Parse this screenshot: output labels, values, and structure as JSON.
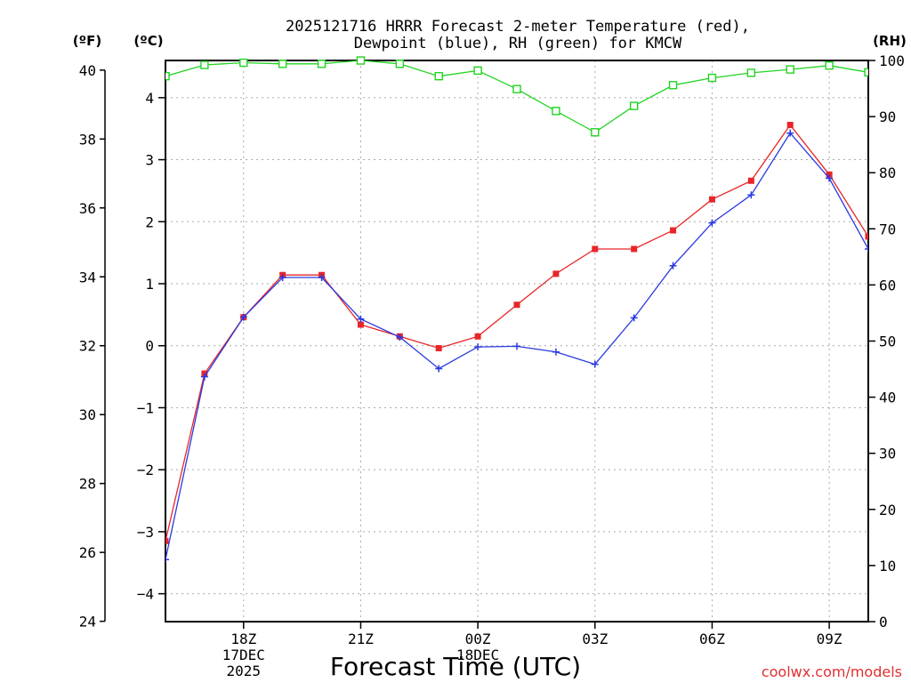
{
  "chart_data": {
    "type": "line",
    "title_line1": "2025121716 HRRR Forecast 2-meter Temperature (red),",
    "title_line2": "Dewpoint (blue), RH (green) for KMCW",
    "xlabel": "Forecast Time (UTC)",
    "credit": "coolwx.com/models",
    "left_outer_label": "(ºF)",
    "left_inner_label": "(ºC)",
    "right_label": "(RH)",
    "hours_from_16Z": [
      0,
      1,
      2,
      3,
      4,
      5,
      6,
      7,
      8,
      9,
      10,
      11,
      12,
      13,
      14,
      15,
      16,
      17,
      18
    ],
    "x_ticks": [
      {
        "hour": 2,
        "label": "18Z",
        "sub1": "17DEC",
        "sub2": "2025"
      },
      {
        "hour": 5,
        "label": "21Z",
        "sub1": "",
        "sub2": ""
      },
      {
        "hour": 8,
        "label": "00Z",
        "sub1": "18DEC",
        "sub2": ""
      },
      {
        "hour": 11,
        "label": "03Z",
        "sub1": "",
        "sub2": ""
      },
      {
        "hour": 14,
        "label": "06Z",
        "sub1": "",
        "sub2": ""
      },
      {
        "hour": 17,
        "label": "09Z",
        "sub1": "",
        "sub2": ""
      }
    ],
    "xlim": [
      0,
      18
    ],
    "celsius_ylim": [
      -4.45,
      4.6
    ],
    "celsius_ticks": [
      -4,
      -3,
      -2,
      -1,
      0,
      1,
      2,
      3,
      4
    ],
    "fahrenheit_ticks": [
      24,
      26,
      28,
      30,
      32,
      34,
      36,
      38,
      40
    ],
    "rh_ylim": [
      0,
      100
    ],
    "rh_ticks": [
      0,
      10,
      20,
      30,
      40,
      50,
      60,
      70,
      80,
      90,
      100
    ],
    "series": [
      {
        "name": "Temperature",
        "unit": "C",
        "color": "#e8262a",
        "values": [
          -3.15,
          -0.45,
          0.46,
          1.14,
          1.14,
          0.34,
          0.15,
          -0.04,
          0.15,
          0.66,
          1.16,
          1.56,
          1.56,
          1.86,
          2.36,
          2.66,
          3.56,
          2.76,
          1.76
        ]
      },
      {
        "name": "Dewpoint",
        "unit": "C",
        "color": "#2a3ae0",
        "values": [
          -3.45,
          -0.5,
          0.46,
          1.1,
          1.1,
          0.43,
          0.14,
          -0.37,
          -0.02,
          -0.01,
          -0.1,
          -0.3,
          0.45,
          1.29,
          1.98,
          2.43,
          3.43,
          2.7,
          1.56
        ]
      },
      {
        "name": "Relative Humidity",
        "unit": "%",
        "color": "#22d422",
        "values": [
          97.2,
          99.2,
          99.6,
          99.4,
          99.4,
          100,
          99.4,
          97.2,
          98.2,
          94.9,
          91.0,
          87.2,
          91.9,
          95.6,
          96.9,
          97.8,
          98.4,
          99.1,
          97.9
        ]
      }
    ]
  }
}
